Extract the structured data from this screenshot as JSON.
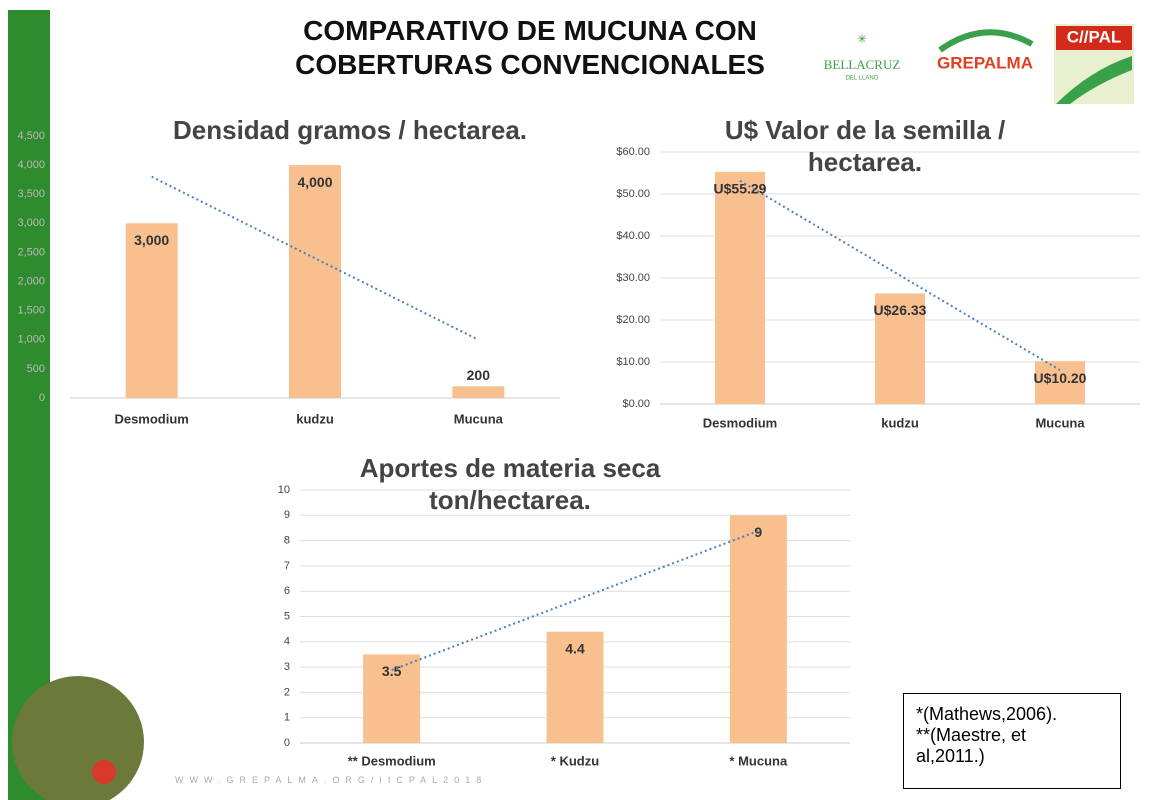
{
  "header": {
    "title_lines": [
      "COMPARATIVO DE MUCUNA CON",
      "COBERTURAS CONVENCIONALES"
    ],
    "logos": [
      "BELLACRUZ",
      "DEL LLANO",
      "GREPALMA",
      "C//PAL"
    ]
  },
  "chart_data": [
    {
      "type": "bar",
      "title": "Densidad  gramos / hectarea.",
      "categories": [
        "Desmodium",
        "kudzu",
        "Mucuna"
      ],
      "values": [
        3000,
        4000,
        200
      ],
      "value_labels": [
        "3,000",
        "4,000",
        "200"
      ],
      "color": "#f8c08f",
      "ylim": [
        0,
        4500
      ],
      "yticks": [
        0,
        500,
        {
          "value": 1000,
          "label": "1,000"
        },
        {
          "value": 1500,
          "label": "1,500"
        },
        {
          "value": 2000,
          "label": "2,000"
        },
        {
          "value": 2500,
          "label": "2,500"
        },
        {
          "value": 3000,
          "label": "3,000"
        },
        {
          "value": 3500,
          "label": "3,500"
        },
        {
          "value": 4000,
          "label": "4,000"
        },
        {
          "value": 4500,
          "label": "4,500"
        }
      ],
      "grid": false,
      "trendline": "linear",
      "trendline_color": "#4a7fc1"
    },
    {
      "type": "bar",
      "title": "U$ Valor de la semilla / hectarea.",
      "categories": [
        "Desmodium",
        "kudzu",
        "Mucuna"
      ],
      "values": [
        55.29,
        26.33,
        10.2
      ],
      "value_labels": [
        "U$55.29",
        "U$26.33",
        "U$10.20"
      ],
      "color": "#f8c08f",
      "ylim": [
        0,
        60
      ],
      "yticks": [
        {
          "value": 0,
          "label": "$0.00"
        },
        {
          "value": 10,
          "label": "$10.00"
        },
        {
          "value": 20,
          "label": "$20.00"
        },
        {
          "value": 30,
          "label": "$30.00"
        },
        {
          "value": 40,
          "label": "$40.00"
        },
        {
          "value": 50,
          "label": "$50.00"
        },
        {
          "value": 60,
          "label": "$60.00"
        }
      ],
      "grid": true,
      "trendline": "linear",
      "trendline_color": "#4a7fc1"
    },
    {
      "type": "bar",
      "title": "Aportes de materia seca ton/hectarea.",
      "categories": [
        "** Desmodium",
        "* Kudzu",
        "* Mucuna"
      ],
      "values": [
        3.5,
        4.4,
        9
      ],
      "color": "#f8c08f",
      "ylim": [
        0,
        10
      ],
      "yticks": [
        0,
        1,
        2,
        3,
        4,
        5,
        6,
        7,
        8,
        9,
        10
      ],
      "grid": true,
      "trendline": "linear",
      "trendline_color": "#4a7fc1"
    }
  ],
  "footnote": {
    "lines": [
      "*(Mathews,2006).",
      "**(Maestre, et al,2011.)"
    ]
  },
  "footer": {
    "url": "WWW.GREPALMA.ORG/IICPAL2018"
  }
}
